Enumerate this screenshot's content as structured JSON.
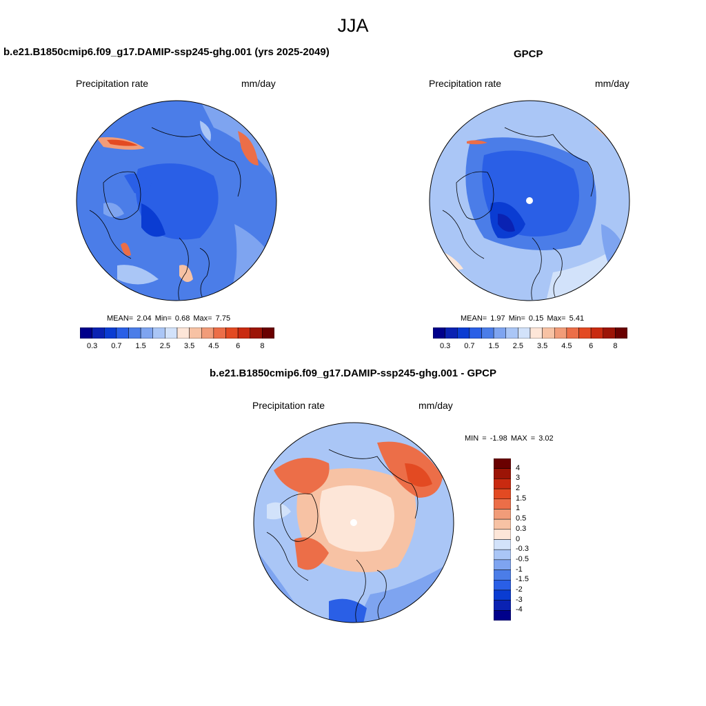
{
  "season": "JJA",
  "palette_abs": [
    "#00008b",
    "#0a22b2",
    "#0a3cd2",
    "#2a5fe6",
    "#4b7de8",
    "#7ea4f0",
    "#aac6f6",
    "#d2e2fa",
    "#fde6d8",
    "#f7c2a4",
    "#f19c79",
    "#ec6e48",
    "#e34a22",
    "#c92a10",
    "#9c1406",
    "#6a0000"
  ],
  "palette_diff": [
    "#6a0000",
    "#9c1406",
    "#c92a10",
    "#e34a22",
    "#ec6e48",
    "#f19c79",
    "#f7c2a4",
    "#fde6d8",
    "#d2e2fa",
    "#aac6f6",
    "#7ea4f0",
    "#4b7de8",
    "#2a5fe6",
    "#0a3cd2",
    "#0a22b2",
    "#00008b"
  ],
  "panels": [
    {
      "title": "b.e21.B1850cmip6.f09_g17.DAMIP-ssp245-ghg.001 (yrs 2025-2049)",
      "left_label": "Precipitation rate",
      "right_label": "mm/day",
      "stats": "MEAN=   2.04  Min=   0.68  Max=   7.75",
      "colorbar_ticks": [
        "0.3",
        "0.7",
        "1.5",
        "2.5",
        "3.5",
        "4.5",
        "6",
        "8"
      ]
    },
    {
      "title": "GPCP",
      "left_label": "Precipitation rate",
      "right_label": "mm/day",
      "stats": "MEAN=   1.97  Min=   0.15  Max=   5.41",
      "colorbar_ticks": [
        "0.3",
        "0.7",
        "1.5",
        "2.5",
        "3.5",
        "4.5",
        "6",
        "8"
      ]
    },
    {
      "title": "b.e21.B1850cmip6.f09_g17.DAMIP-ssp245-ghg.001 - GPCP",
      "left_label": "Precipitation rate",
      "right_label": "mm/day",
      "stats": "MIN =  -1.98 MAX =   3.02",
      "colorbar_ticks": [
        "4",
        "3",
        "2",
        "1.5",
        "1",
        "0.5",
        "0.3",
        "0",
        "-0.3",
        "-0.5",
        "-1",
        "-1.5",
        "-2",
        "-3",
        "-4"
      ]
    }
  ]
}
